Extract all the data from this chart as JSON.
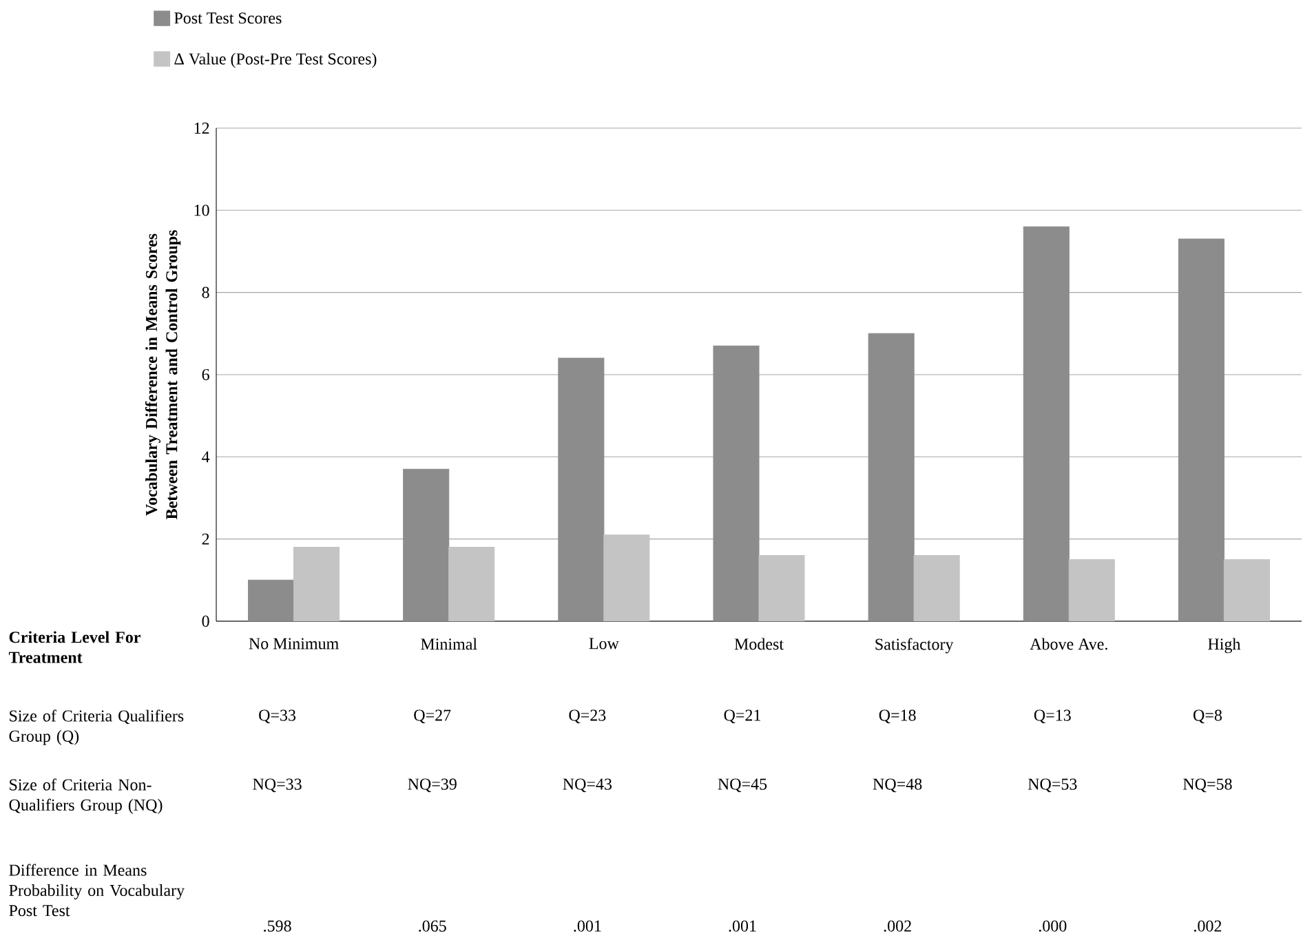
{
  "chart_data": {
    "type": "bar",
    "categories": [
      "No Minimum",
      "Minimal",
      "Low",
      "Modest",
      "Satisfactory",
      "Above Ave.",
      "High"
    ],
    "series": [
      {
        "name": "Post Test Scores",
        "color": "#8c8c8c",
        "values": [
          1.0,
          3.7,
          6.4,
          6.7,
          7.0,
          9.6,
          9.3
        ]
      },
      {
        "name": "Δ Value (Post-Pre Test Scores)",
        "color": "#c4c4c4",
        "values": [
          1.8,
          1.8,
          2.1,
          1.6,
          1.6,
          1.5,
          1.5
        ]
      }
    ],
    "ylim": [
      0,
      12
    ],
    "yticks": [
      0,
      2,
      4,
      6,
      8,
      10,
      12
    ],
    "grid": "y",
    "legend": "top left",
    "ylabel": "Vocabulary Difference in Means Scores Between Treatment and Control Groups",
    "xlabel": "Criteria Level For Treatment",
    "annotations": [
      "Size of Criteria Qualifiers Group (Q)",
      "Q=33",
      "Q=27",
      "Q=23",
      "Q=21",
      "Q=18",
      "Q=13",
      "Q=8",
      "Size of Criteria Non-Qualifiers Group (NQ)",
      "NQ=33",
      "NQ=39",
      "NQ=43",
      "NQ=45",
      "NQ=48",
      "NQ=53",
      "NQ=58",
      "Difference in Means Probability on Vocabulary Post Test",
      ".598",
      ".065",
      ".001",
      ".001",
      ".002",
      ".000",
      ".002"
    ]
  }
}
